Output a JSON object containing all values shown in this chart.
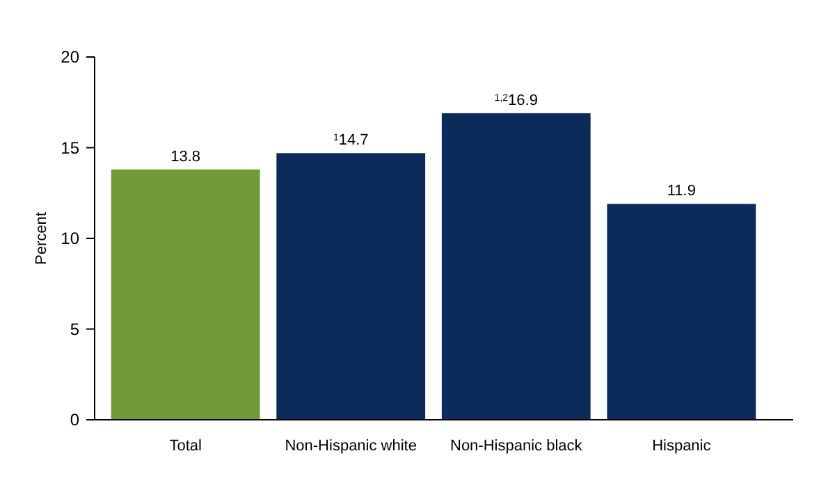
{
  "chart_data": {
    "type": "bar",
    "ylabel": "Percent",
    "categories": [
      "Total",
      "Non-Hispanic white",
      "Non-Hispanic black",
      "Hispanic"
    ],
    "values": [
      13.8,
      14.7,
      16.9,
      11.9
    ],
    "colors": [
      "#6f9a37",
      "#0d2b5a",
      "#0d2b5a",
      "#0d2b5a"
    ],
    "value_labels": [
      "13.8",
      "$^{1}$14.7",
      "$^{1,2}$16.9",
      "11.9"
    ],
    "ylim": [
      0,
      20
    ],
    "yticks": [
      0,
      5,
      10,
      15,
      20
    ],
    "grid": false
  }
}
